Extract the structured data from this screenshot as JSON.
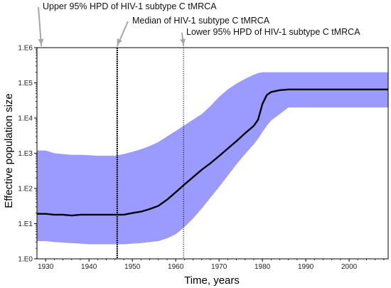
{
  "chart_data": {
    "type": "area",
    "title": "",
    "xlabel": "Time, years",
    "ylabel": "Effective population size",
    "xlim": [
      1928,
      2009
    ],
    "ylim": [
      1,
      1000000
    ],
    "y_scale": "log",
    "x_ticks": [
      1930,
      1940,
      1950,
      1960,
      1970,
      1980,
      1990,
      2000
    ],
    "y_ticks": [
      {
        "value": 1,
        "label": "1.E0"
      },
      {
        "value": 10,
        "label": "1.E1"
      },
      {
        "value": 100,
        "label": "1.E2"
      },
      {
        "value": 1000,
        "label": "1.E3"
      },
      {
        "value": 10000,
        "label": "1.E4"
      },
      {
        "value": 100000,
        "label": "1.E5"
      },
      {
        "value": 1000000,
        "label": "1.E6"
      }
    ],
    "grid": false,
    "colors": {
      "band": "#9b9bff",
      "median_line": "#000000",
      "arrow": "#a6a6a6"
    },
    "series": [
      {
        "x": [
          1928,
          1930,
          1932,
          1934,
          1936,
          1938,
          1940,
          1942,
          1944,
          1946,
          1948,
          1950,
          1952,
          1954,
          1956,
          1958,
          1960,
          1962,
          1964,
          1966,
          1968,
          1970,
          1972,
          1974,
          1976,
          1978,
          1979,
          1980,
          1981,
          1982,
          1984,
          1986,
          1988,
          1990,
          1995,
          2000,
          2005,
          2009
        ],
        "median": [
          19,
          19,
          18,
          18,
          17,
          18,
          18,
          18,
          18,
          18,
          18,
          20,
          22,
          26,
          32,
          48,
          78,
          130,
          210,
          340,
          520,
          830,
          1350,
          2200,
          3700,
          6000,
          9000,
          25000,
          45000,
          55000,
          62000,
          65000,
          65000,
          65000,
          65000,
          65000,
          65000,
          65000
        ],
        "lower": [
          3.2,
          3.2,
          3.0,
          2.9,
          2.8,
          2.7,
          2.6,
          2.6,
          2.6,
          2.6,
          2.6,
          2.7,
          2.8,
          3.0,
          3.2,
          3.8,
          5.0,
          8.0,
          14,
          27,
          55,
          110,
          230,
          480,
          950,
          1800,
          2600,
          4000,
          6000,
          8500,
          13000,
          20000,
          20000,
          20000,
          20000,
          20000,
          20000,
          20000
        ],
        "upper": [
          1200,
          1200,
          1000,
          950,
          900,
          900,
          880,
          850,
          850,
          850,
          950,
          1100,
          1300,
          1600,
          2100,
          3000,
          4300,
          6200,
          9000,
          13000,
          22000,
          40000,
          65000,
          95000,
          130000,
          170000,
          190000,
          200000,
          200000,
          200000,
          200000,
          200000,
          200000,
          200000,
          200000,
          200000,
          200000,
          200000
        ]
      }
    ],
    "markers": [
      {
        "label": "Upper 95% HPD of HIV-1 subtype C tMRCA",
        "x": 1929
      },
      {
        "label": "Median of HIV-1 subtype C tMRCA",
        "x": 1946.5
      },
      {
        "label": "Lower 95% HPD of HIV-1 subtype C tMRCA",
        "x": 1961.8
      }
    ]
  }
}
